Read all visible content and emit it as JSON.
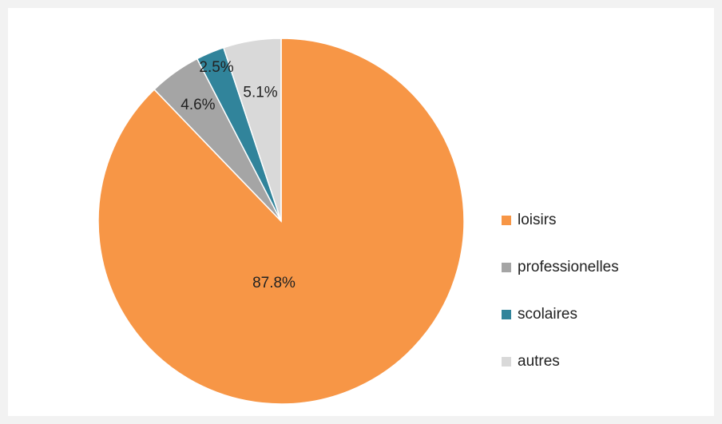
{
  "chart_data": {
    "type": "pie",
    "categories": [
      "loisirs",
      "professionelles",
      "scolaires",
      "autres"
    ],
    "values": [
      87.8,
      4.6,
      2.5,
      5.1
    ],
    "value_labels": [
      "87.8%",
      "4.6%",
      "2.5%",
      "5.1%"
    ],
    "colors": [
      "#f79646",
      "#a5a5a5",
      "#31849b",
      "#d9d9d9"
    ],
    "legend": "right"
  }
}
